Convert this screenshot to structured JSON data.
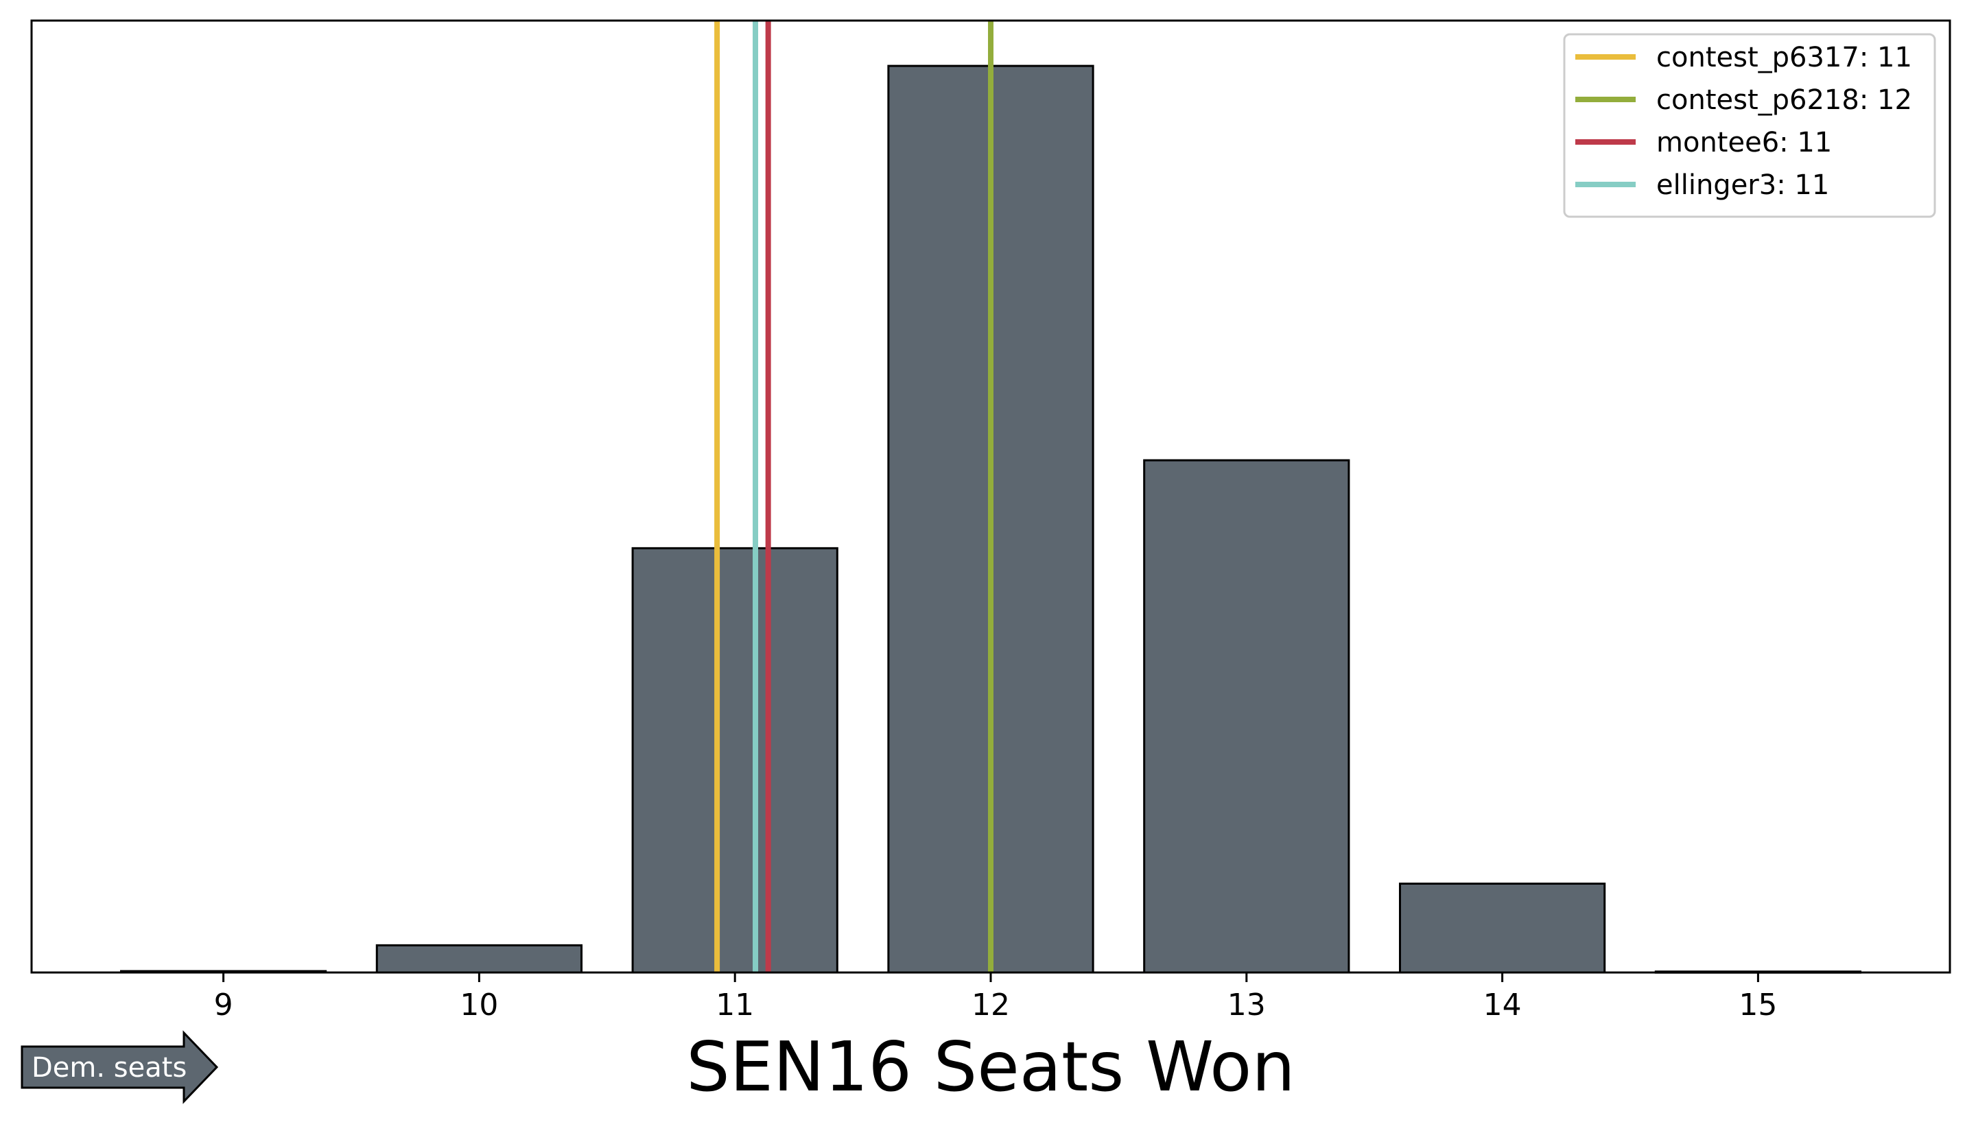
{
  "chart_data": {
    "type": "bar",
    "title": "",
    "xlabel": "SEN16 Seats Won",
    "ylabel": "",
    "categories": [
      "9",
      "10",
      "11",
      "12",
      "13",
      "14",
      "15"
    ],
    "x": [
      9,
      10,
      11,
      12,
      13,
      14,
      15
    ],
    "values": [
      0.15,
      3.0,
      46.8,
      100.0,
      56.5,
      9.8,
      0.1
    ],
    "xlim": [
      8.25,
      15.75
    ],
    "ylim": [
      0,
      105
    ],
    "bar_color": "#5d6770",
    "bar_edge_color": "#000000",
    "grid": false,
    "show_y_ticks": false,
    "reference_lines": [
      {
        "name": "contest_p6317",
        "value": 11,
        "label": "contest_p6317: 11",
        "color": "#eabd3c",
        "plot_x": 10.93
      },
      {
        "name": "contest_p6218",
        "value": 12,
        "label": "contest_p6218: 12",
        "color": "#93ad3c",
        "plot_x": 12.0
      },
      {
        "name": "montee6",
        "value": 11,
        "label": "montee6: 11",
        "color": "#be3a4a",
        "plot_x": 11.13
      },
      {
        "name": "ellinger3",
        "value": 11,
        "label": "ellinger3: 11",
        "color": "#86cdc4",
        "plot_x": 11.08
      }
    ],
    "legend": {
      "placement": "top-right"
    },
    "direction_arrow": {
      "label": "Dem. seats",
      "color": "#5d6770"
    }
  }
}
